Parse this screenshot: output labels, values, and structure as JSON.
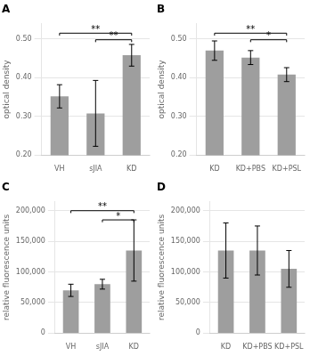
{
  "chart_data": [
    {
      "type": "bar",
      "title": "A",
      "ylabel": "optical density",
      "categories": [
        "VH",
        "sJIA",
        "KD"
      ],
      "values": [
        0.352,
        0.308,
        0.458
      ],
      "errors": [
        0.03,
        0.085,
        0.028
      ],
      "color": "#9E9E9E",
      "ylim": [
        0.2,
        0.54
      ],
      "yticks": [
        {
          "value": 0.2,
          "label": "0.20"
        },
        {
          "value": 0.3,
          "label": "0.30"
        },
        {
          "value": 0.4,
          "label": "0.40"
        },
        {
          "value": 0.5,
          "label": "0.50"
        }
      ],
      "grid": true,
      "annotations": [
        {
          "x1": "VH",
          "x2": "KD",
          "y": 0.515,
          "text": "**"
        },
        {
          "x1": "sJIA",
          "x2": "KD",
          "y": 0.498,
          "text": "**"
        }
      ]
    },
    {
      "type": "bar",
      "title": "B",
      "ylabel": "optical density",
      "categories": [
        "KD",
        "KD+PBS",
        "KD+PSL"
      ],
      "values": [
        0.47,
        0.452,
        0.408
      ],
      "errors": [
        0.025,
        0.018,
        0.018
      ],
      "color": "#9E9E9E",
      "ylim": [
        0.2,
        0.54
      ],
      "yticks": [
        {
          "value": 0.2,
          "label": "0.20"
        },
        {
          "value": 0.3,
          "label": "0.30"
        },
        {
          "value": 0.4,
          "label": "0.40"
        },
        {
          "value": 0.5,
          "label": "0.50"
        }
      ],
      "grid": true,
      "annotations": [
        {
          "x1": "KD",
          "x2": "KD+PSL",
          "y": 0.515,
          "text": "**"
        },
        {
          "x1": "KD+PBS",
          "x2": "KD+PSL",
          "y": 0.498,
          "text": "*"
        }
      ]
    },
    {
      "type": "bar",
      "title": "C",
      "ylabel": "relative fluorescence units",
      "categories": [
        "VH",
        "sJIA",
        "KD"
      ],
      "values": [
        70000,
        80000,
        135000
      ],
      "errors": [
        10000,
        8000,
        50000
      ],
      "color": "#9E9E9E",
      "ylim": [
        0,
        215000
      ],
      "yticks": [
        0,
        {
          "value": 50000,
          "label": "50,000"
        },
        {
          "value": 100000,
          "label": "100,000"
        },
        {
          "value": 150000,
          "label": "150,000"
        },
        {
          "value": 200000,
          "label": "200,000"
        }
      ],
      "grid": true,
      "annotations": [
        {
          "x1": "VH",
          "x2": "KD",
          "y": 200000,
          "text": "**"
        },
        {
          "x1": "sJIA",
          "x2": "KD",
          "y": 185000,
          "text": "*"
        }
      ]
    },
    {
      "type": "bar",
      "title": "D",
      "ylabel": "relative fluorescence units",
      "categories": [
        "KD",
        "KD+PBS",
        "KD+PSL"
      ],
      "values": [
        135000,
        135000,
        105000
      ],
      "errors": [
        45000,
        40000,
        30000
      ],
      "color": "#9E9E9E",
      "ylim": [
        0,
        215000
      ],
      "yticks": [
        0,
        {
          "value": 50000,
          "label": "50,000"
        },
        {
          "value": 100000,
          "label": "100,000"
        },
        {
          "value": 150000,
          "label": "150,000"
        },
        {
          "value": 200000,
          "label": "200,000"
        }
      ],
      "grid": true
    }
  ]
}
